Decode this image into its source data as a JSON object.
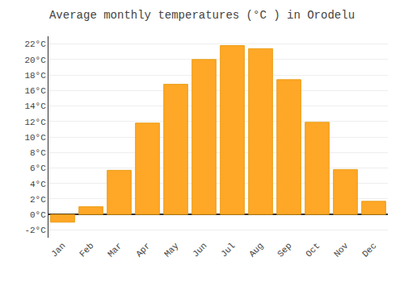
{
  "chart_data": {
    "type": "bar",
    "title": "Average monthly temperatures (°C ) in Orodelu",
    "categories": [
      "Jan",
      "Feb",
      "Mar",
      "Apr",
      "May",
      "Jun",
      "Jul",
      "Aug",
      "Sep",
      "Oct",
      "Nov",
      "Dec"
    ],
    "values": [
      -1.0,
      1.0,
      5.7,
      11.8,
      16.8,
      20.0,
      21.8,
      21.4,
      17.4,
      11.9,
      5.8,
      1.7
    ],
    "color": "#FFA726",
    "ylim": [
      -3,
      23
    ],
    "yticks": [
      {
        "value": -2,
        "label": "-2°C"
      },
      {
        "value": 0,
        "label": "0°C"
      },
      {
        "value": 2,
        "label": "2°C"
      },
      {
        "value": 4,
        "label": "4°C"
      },
      {
        "value": 6,
        "label": "6°C"
      },
      {
        "value": 8,
        "label": "8°C"
      },
      {
        "value": 10,
        "label": "10°C"
      },
      {
        "value": 12,
        "label": "12°C"
      },
      {
        "value": 14,
        "label": "14°C"
      },
      {
        "value": 16,
        "label": "16°C"
      },
      {
        "value": 18,
        "label": "18°C"
      },
      {
        "value": 20,
        "label": "20°C"
      },
      {
        "value": 22,
        "label": "22°C"
      }
    ],
    "grid": true
  }
}
